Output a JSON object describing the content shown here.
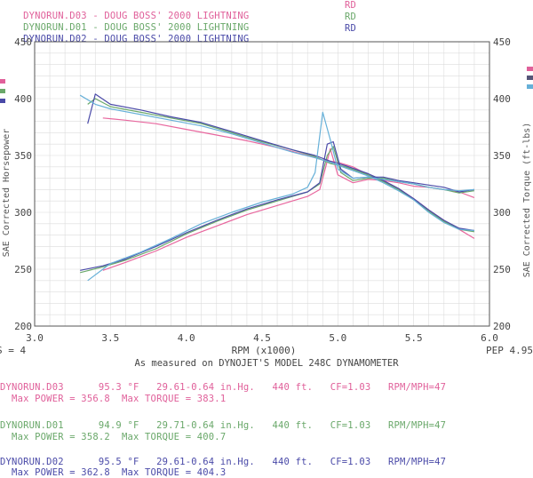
{
  "header": {
    "runs": [
      {
        "name": "DYNORUN.D03 - DOUG BOSS' 2000 LIGHTNING",
        "tag": "RD",
        "color": "#e0609a"
      },
      {
        "name": "DYNORUN.D01 - DOUG BOSS' 2000 LIGHTNING",
        "tag": "RD",
        "color": "#6aa86a"
      },
      {
        "name": "DYNORUN.D02 - DOUG BOSS' 2000 LIGHTNING",
        "tag": "RD",
        "color": "#4a4aa8"
      }
    ]
  },
  "chart_data": {
    "type": "line",
    "xlabel": "RPM (x1000)",
    "ylabel_left": "SAE Corrected Horsepower",
    "ylabel_right": "SAE Corrected Torque (ft-lbs)",
    "xlim": [
      3.0,
      6.0
    ],
    "ylim": [
      200,
      450
    ],
    "x_ticks": [
      "3.0",
      "3.5",
      "4.0",
      "4.5",
      "5.0",
      "5.5",
      "6.0"
    ],
    "y_ticks": [
      "200",
      "250",
      "300",
      "350",
      "400",
      "450"
    ],
    "left_edge_label": "S = 4",
    "right_edge_label": "PEP 4.95",
    "grid": true,
    "series": [
      {
        "name": "DYNORUN.D03",
        "kind": "power",
        "color": "#e8679e",
        "x": [
          3.45,
          3.6,
          3.8,
          4.0,
          4.2,
          4.4,
          4.6,
          4.8,
          4.88,
          4.92,
          4.95,
          5.0,
          5.1,
          5.2,
          5.3,
          5.4,
          5.5,
          5.6,
          5.7,
          5.8,
          5.9
        ],
        "y": [
          249,
          256,
          266,
          278,
          288,
          298,
          306,
          314,
          320,
          340,
          356,
          333,
          326,
          329,
          328,
          326,
          323,
          322,
          320,
          318,
          313
        ]
      },
      {
        "name": "DYNORUN.D03",
        "kind": "torque",
        "color": "#e8679e",
        "x": [
          3.45,
          3.6,
          3.8,
          4.0,
          4.2,
          4.4,
          4.6,
          4.8,
          4.9,
          5.0,
          5.1,
          5.2,
          5.3,
          5.4,
          5.5,
          5.6,
          5.7,
          5.8,
          5.9
        ],
        "y": [
          383,
          381,
          378,
          373,
          368,
          363,
          357,
          350,
          346,
          344,
          340,
          333,
          328,
          321,
          312,
          302,
          293,
          285,
          277
        ]
      },
      {
        "name": "DYNORUN.D01",
        "kind": "power",
        "color": "#6aa86a",
        "x": [
          3.3,
          3.45,
          3.6,
          3.8,
          4.0,
          4.2,
          4.4,
          4.6,
          4.8,
          4.88,
          4.93,
          4.97,
          5.02,
          5.1,
          5.2,
          5.3,
          5.4,
          5.5,
          5.6,
          5.7,
          5.8,
          5.9
        ],
        "y": [
          247,
          252,
          258,
          268,
          281,
          292,
          302,
          310,
          318,
          325,
          350,
          358,
          335,
          328,
          330,
          330,
          327,
          325,
          322,
          320,
          317,
          319
        ]
      },
      {
        "name": "DYNORUN.D01",
        "kind": "torque",
        "color": "#6aa86a",
        "x": [
          3.35,
          3.4,
          3.5,
          3.7,
          3.9,
          4.1,
          4.3,
          4.5,
          4.7,
          4.85,
          4.95,
          5.05,
          5.2,
          5.3,
          5.4,
          5.5,
          5.6,
          5.7,
          5.8,
          5.9
        ],
        "y": [
          395,
          400,
          393,
          388,
          383,
          378,
          370,
          362,
          355,
          349,
          343,
          340,
          333,
          327,
          320,
          311,
          301,
          292,
          285,
          283
        ]
      },
      {
        "name": "DYNORUN.D02",
        "kind": "power",
        "color": "#4a4aa8",
        "x": [
          3.3,
          3.45,
          3.6,
          3.8,
          4.0,
          4.2,
          4.4,
          4.6,
          4.8,
          4.88,
          4.93,
          4.97,
          5.02,
          5.1,
          5.2,
          5.3,
          5.4,
          5.5,
          5.6,
          5.7,
          5.8,
          5.9
        ],
        "y": [
          249,
          253,
          259,
          270,
          282,
          293,
          303,
          311,
          318,
          326,
          360,
          362,
          338,
          330,
          331,
          331,
          328,
          326,
          324,
          322,
          318,
          320
        ]
      },
      {
        "name": "DYNORUN.D02",
        "kind": "torque",
        "color": "#4a4aa8",
        "x": [
          3.35,
          3.4,
          3.5,
          3.7,
          3.9,
          4.1,
          4.3,
          4.5,
          4.7,
          4.85,
          4.95,
          5.05,
          5.2,
          5.3,
          5.4,
          5.5,
          5.6,
          5.7,
          5.8,
          5.9
        ],
        "y": [
          378,
          404,
          395,
          390,
          384,
          379,
          371,
          363,
          355,
          350,
          345,
          341,
          334,
          328,
          321,
          312,
          302,
          293,
          286,
          284
        ]
      },
      {
        "name": "DYNORUN.D02",
        "kind": "power-alt",
        "color": "#66b0d8",
        "x": [
          3.35,
          3.5,
          3.7,
          3.9,
          4.1,
          4.3,
          4.5,
          4.7,
          4.8,
          4.85,
          4.9,
          4.95,
          5.0,
          5.1,
          5.2,
          5.3,
          5.4,
          5.5,
          5.6,
          5.7,
          5.8,
          5.9
        ],
        "y": [
          240,
          255,
          265,
          277,
          290,
          300,
          309,
          316,
          322,
          335,
          388,
          364,
          338,
          330,
          331,
          329,
          327,
          325,
          322,
          320,
          319,
          320
        ]
      },
      {
        "name": "DYNORUN.D02",
        "kind": "torque-alt",
        "color": "#66b0d8",
        "x": [
          3.3,
          3.4,
          3.5,
          3.7,
          3.9,
          4.1,
          4.3,
          4.5,
          4.7,
          4.85,
          4.95,
          5.05,
          5.2,
          5.3,
          5.4,
          5.5,
          5.6,
          5.7,
          5.8,
          5.9
        ],
        "y": [
          403,
          395,
          391,
          386,
          381,
          376,
          369,
          361,
          353,
          348,
          344,
          339,
          332,
          326,
          319,
          311,
          300,
          291,
          285,
          284
        ]
      }
    ]
  },
  "caption": "As measured on DYNOJET'S MODEL 248C DYNAMOMETER",
  "stats": [
    {
      "line1": "DYNORUN.D03      95.3 °F   29.61-0.64 in.Hg.   440 ft.   CF=1.03   RPM/MPH=47",
      "line2": "  Max POWER = 356.8  Max TORQUE = 383.1",
      "color": "#e0609a"
    },
    {
      "line1": "DYNORUN.D01      94.9 °F   29.71-0.64 in.Hg.   440 ft.   CF=1.03   RPM/MPH=47",
      "line2": "  Max POWER = 358.2  Max TORQUE = 400.7",
      "color": "#6aa86a"
    },
    {
      "line1": "DYNORUN.D02      95.5 °F   29.61-0.64 in.Hg.   440 ft.   CF=1.03   RPM/MPH=47",
      "line2": "  Max POWER = 362.8  Max TORQUE = 404.3",
      "color": "#4a4aa8"
    }
  ]
}
